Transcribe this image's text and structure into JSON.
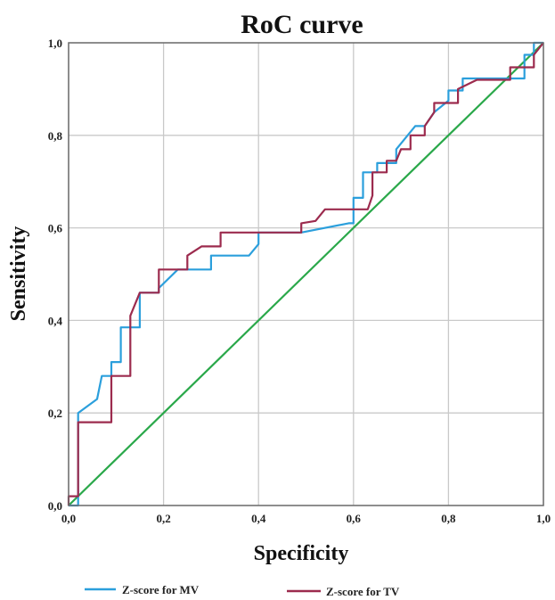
{
  "chart_data": {
    "type": "line",
    "title": "RoC curve",
    "xlabel": "Specificity",
    "ylabel": "Sensitivity",
    "xlim": [
      0,
      1
    ],
    "ylim": [
      0,
      1
    ],
    "x_ticks": [
      "0,0",
      "0,2",
      "0,4",
      "0,6",
      "0,8",
      "1,0"
    ],
    "y_ticks": [
      "0,0",
      "0,2",
      "0,4",
      "0,6",
      "0,8",
      "1,0"
    ],
    "grid": true,
    "legend_position": "bottom",
    "series": [
      {
        "name": "Z-score for MV",
        "color": "#2b9fdc",
        "points": [
          [
            0.0,
            0.0
          ],
          [
            0.02,
            0.0
          ],
          [
            0.02,
            0.2
          ],
          [
            0.06,
            0.23
          ],
          [
            0.07,
            0.28
          ],
          [
            0.09,
            0.28
          ],
          [
            0.09,
            0.31
          ],
          [
            0.11,
            0.31
          ],
          [
            0.11,
            0.385
          ],
          [
            0.15,
            0.385
          ],
          [
            0.15,
            0.46
          ],
          [
            0.19,
            0.46
          ],
          [
            0.19,
            0.47
          ],
          [
            0.23,
            0.51
          ],
          [
            0.3,
            0.51
          ],
          [
            0.3,
            0.54
          ],
          [
            0.38,
            0.54
          ],
          [
            0.4,
            0.565
          ],
          [
            0.4,
            0.59
          ],
          [
            0.49,
            0.59
          ],
          [
            0.59,
            0.61
          ],
          [
            0.6,
            0.61
          ],
          [
            0.6,
            0.665
          ],
          [
            0.62,
            0.665
          ],
          [
            0.62,
            0.72
          ],
          [
            0.65,
            0.72
          ],
          [
            0.65,
            0.74
          ],
          [
            0.69,
            0.74
          ],
          [
            0.69,
            0.77
          ],
          [
            0.73,
            0.82
          ],
          [
            0.75,
            0.82
          ],
          [
            0.77,
            0.85
          ],
          [
            0.8,
            0.875
          ],
          [
            0.8,
            0.897
          ],
          [
            0.83,
            0.897
          ],
          [
            0.83,
            0.923
          ],
          [
            0.96,
            0.923
          ],
          [
            0.96,
            0.974
          ],
          [
            0.98,
            0.974
          ],
          [
            0.98,
            1.0
          ],
          [
            1.0,
            1.0
          ]
        ]
      },
      {
        "name": "Z-score for TV",
        "color": "#9c2b4e",
        "points": [
          [
            0.0,
            0.0
          ],
          [
            0.0,
            0.02
          ],
          [
            0.02,
            0.02
          ],
          [
            0.02,
            0.18
          ],
          [
            0.09,
            0.18
          ],
          [
            0.09,
            0.28
          ],
          [
            0.13,
            0.28
          ],
          [
            0.13,
            0.41
          ],
          [
            0.15,
            0.46
          ],
          [
            0.19,
            0.46
          ],
          [
            0.19,
            0.51
          ],
          [
            0.25,
            0.51
          ],
          [
            0.25,
            0.54
          ],
          [
            0.28,
            0.56
          ],
          [
            0.32,
            0.56
          ],
          [
            0.32,
            0.59
          ],
          [
            0.49,
            0.59
          ],
          [
            0.49,
            0.61
          ],
          [
            0.52,
            0.615
          ],
          [
            0.54,
            0.64
          ],
          [
            0.63,
            0.64
          ],
          [
            0.64,
            0.67
          ],
          [
            0.64,
            0.72
          ],
          [
            0.67,
            0.72
          ],
          [
            0.67,
            0.745
          ],
          [
            0.69,
            0.745
          ],
          [
            0.7,
            0.77
          ],
          [
            0.72,
            0.77
          ],
          [
            0.72,
            0.8
          ],
          [
            0.75,
            0.8
          ],
          [
            0.75,
            0.82
          ],
          [
            0.77,
            0.85
          ],
          [
            0.77,
            0.87
          ],
          [
            0.82,
            0.87
          ],
          [
            0.82,
            0.9
          ],
          [
            0.86,
            0.92
          ],
          [
            0.93,
            0.92
          ],
          [
            0.93,
            0.947
          ],
          [
            0.98,
            0.947
          ],
          [
            0.98,
            0.974
          ],
          [
            1.0,
            1.0
          ]
        ]
      },
      {
        "color": "#2aa84a",
        "points": [
          [
            0.0,
            0.0
          ],
          [
            1.0,
            1.0
          ]
        ]
      }
    ]
  }
}
